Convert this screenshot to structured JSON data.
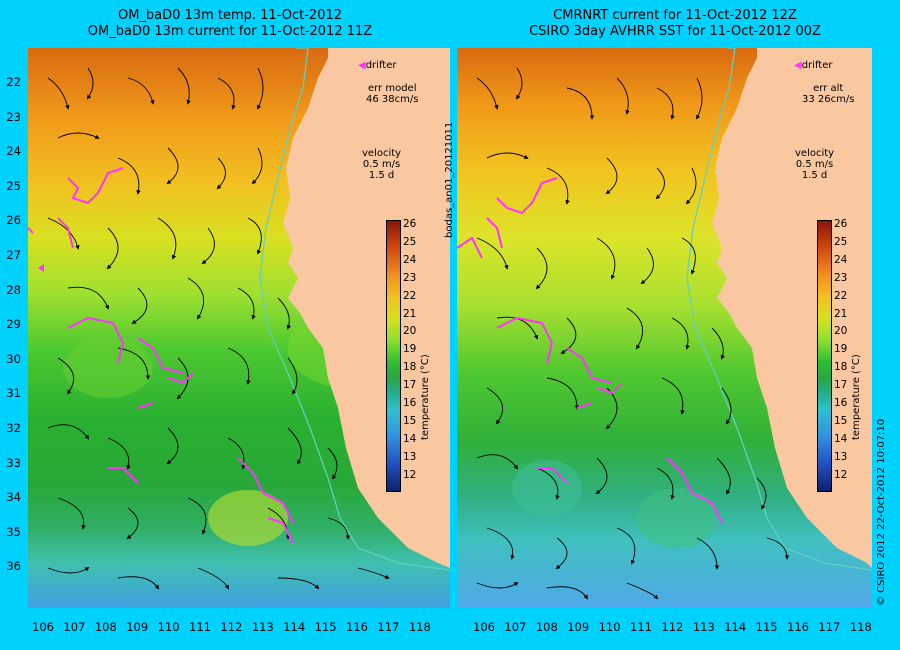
{
  "left_panel": {
    "title_line1": "OM_baD0 13m temp. 11-Oct-2012",
    "title_line2": "OM_baD0 13m current for 11-Oct-2012 11Z",
    "legend_drifter": "drifter",
    "err_label": "err model",
    "err_value": "46 38cm/s",
    "velocity_label": "velocity",
    "velocity_scale": "0.5 m/s",
    "velocity_days": "1.5 d",
    "colorbar_title": "temperature (°C)"
  },
  "right_panel": {
    "title_line1": "CMRNRT current for 11-Oct-2012 12Z",
    "title_line2": "CSIRO 3day AVHRR SST for 11-Oct-2012 00Z",
    "legend_drifter": "drifter",
    "err_label": "err alt",
    "err_value": "33 26cm/s",
    "velocity_label": "velocity",
    "velocity_scale": "0.5 m/s",
    "velocity_days": "1.5 d",
    "colorbar_title": "temperature (°C)"
  },
  "side_text_middle": "bodas_an01_20121011",
  "side_text_right": "© CSIRO 2012   22-Oct-2012 10:07:10",
  "latitudes": [
    "22",
    "23",
    "24",
    "25",
    "26",
    "27",
    "28",
    "29",
    "30",
    "31",
    "32",
    "33",
    "34",
    "35",
    "36"
  ],
  "longitudes": [
    "106",
    "107",
    "108",
    "109",
    "110",
    "111",
    "112",
    "113",
    "114",
    "115",
    "116",
    "117",
    "118"
  ],
  "colorbar_ticks": [
    "26",
    "25",
    "24",
    "23",
    "22",
    "21",
    "20",
    "19",
    "18",
    "17",
    "16",
    "15",
    "14",
    "13",
    "12"
  ],
  "colors": {
    "background": "#00d2ff",
    "land": "#f9c7a0",
    "drifter": "#ff33ff",
    "shelf_line": "#60d0c0"
  }
}
